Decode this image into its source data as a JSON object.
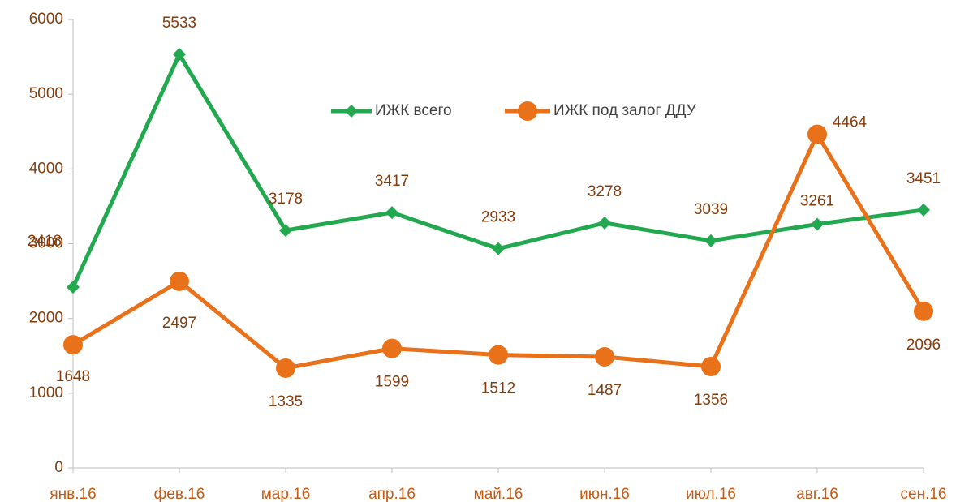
{
  "chart_data": {
    "type": "line",
    "categories": [
      "янв.16",
      "фев.16",
      "мар.16",
      "апр.16",
      "май.16",
      "июн.16",
      "июл.16",
      "авг.16",
      "сен.16"
    ],
    "series": [
      {
        "name": "ИЖК всего",
        "color": "#22a94f",
        "marker": "diamond",
        "values": [
          2418,
          5533,
          3178,
          3417,
          2933,
          3278,
          3039,
          3261,
          3451
        ]
      },
      {
        "name": "ИЖК под залог ДДУ",
        "color": "#e8711a",
        "marker": "circle",
        "values": [
          1648,
          2497,
          1335,
          1599,
          1512,
          1487,
          1356,
          4464,
          2096
        ]
      }
    ],
    "ylim": [
      0,
      6000
    ],
    "yticks": [
      0,
      1000,
      2000,
      3000,
      4000,
      5000,
      6000
    ],
    "legend": "top",
    "grid": false
  }
}
